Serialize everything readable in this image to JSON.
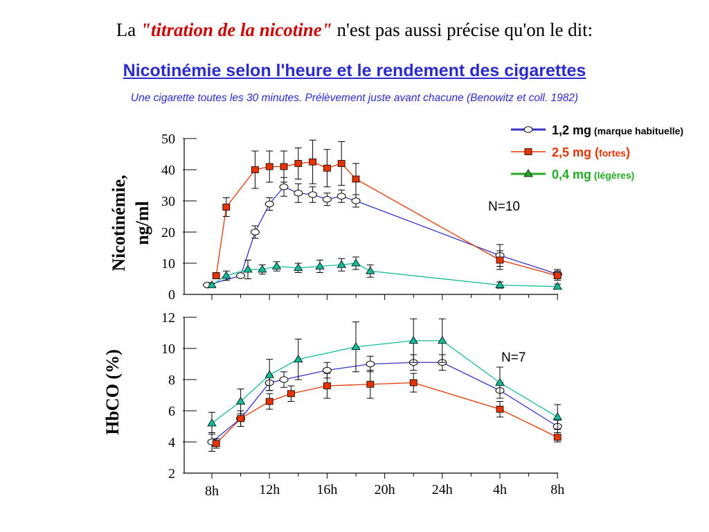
{
  "heading": {
    "prefix": "La ",
    "highlight": "\"titration de la nicotine\"",
    "suffix": " n'est pas aussi précise qu'on le dit:"
  },
  "title": "Nicotinémie selon l'heure et le rendement des cigarettes",
  "subtitle": "Une cigarette toutes les 30 minutes.  Prélèvement juste avant chacune (Benowitz et coll. 1982)",
  "colors": {
    "blue": "#3333cc",
    "red": "#e63300",
    "green": "#11bb99",
    "green_legend": "#22aa22",
    "title_blue": "#2a2ad0"
  },
  "legend": [
    {
      "main": "1,2 mg",
      "detail": " (marque habituelle)",
      "close": "",
      "marker": "circle",
      "color": "#3333cc",
      "text_color": "#000000"
    },
    {
      "main": "2,5 mg (",
      "detail": "fortes",
      "close": ")",
      "marker": "square",
      "color": "#e63300",
      "text_color": "#e63300"
    },
    {
      "main": "0,4 mg",
      "detail": " (légères)",
      "close": "",
      "marker": "triangle",
      "color": "#22aa22",
      "text_color": "#22aa22"
    }
  ],
  "chart_data": [
    {
      "type": "line",
      "ylabel": "Nicotinémie, ng/ml",
      "ylabel_lines": [
        "Nicotinémie,",
        "ng/ml"
      ],
      "ylim": [
        0,
        50
      ],
      "yticks": [
        0,
        10,
        20,
        30,
        40,
        50
      ],
      "annotation": "N=10",
      "series": [
        {
          "name": "1,2 mg (marque habituelle)",
          "marker": "circle",
          "color": "#3333cc",
          "x": [
            -0.3,
            2,
            3,
            4,
            5,
            6,
            7,
            8,
            9,
            10,
            20,
            24
          ],
          "y": [
            3,
            6,
            20,
            29,
            34.5,
            32.5,
            32,
            30.5,
            31.5,
            30,
            12.5,
            6.5
          ],
          "err": [
            0,
            0,
            2,
            2,
            3,
            3,
            2.5,
            2,
            2,
            2,
            3.5,
            1.5
          ]
        },
        {
          "name": "2,5 mg (fortes)",
          "marker": "square",
          "color": "#e63300",
          "x": [
            0.3,
            1,
            3,
            4,
            5,
            6,
            7,
            8,
            9,
            10,
            20,
            24
          ],
          "y": [
            6,
            28,
            40,
            41,
            41,
            42,
            42.5,
            40.5,
            42,
            37,
            11,
            6
          ],
          "err": [
            1,
            3,
            6,
            5,
            5,
            5,
            7,
            6,
            7,
            5,
            3,
            1.5
          ]
        },
        {
          "name": "0,4 mg (légères)",
          "marker": "triangle",
          "color": "#11bb99",
          "x": [
            0,
            1,
            2.5,
            3.5,
            4.5,
            6,
            7.5,
            9,
            10,
            11,
            20,
            24
          ],
          "y": [
            3,
            6,
            8,
            8,
            9,
            8.5,
            9,
            9.5,
            10,
            7.5,
            3,
            2.5
          ],
          "err": [
            0.5,
            1.5,
            3,
            1.5,
            1.5,
            1.5,
            2,
            2,
            2,
            2,
            1,
            0.8
          ]
        }
      ]
    },
    {
      "type": "line",
      "ylabel": "HbCO (%)",
      "ylim": [
        2,
        12
      ],
      "yticks": [
        2,
        4,
        6,
        8,
        10,
        12
      ],
      "annotation": "N=7",
      "xlabels": [
        "8h",
        "12h",
        "16h",
        "20h",
        "24h",
        "4h",
        "8h"
      ],
      "series": [
        {
          "name": "1,2 mg (marque habituelle)",
          "marker": "circle",
          "color": "#3333cc",
          "x": [
            0,
            2,
            4,
            5,
            8,
            11,
            14,
            16,
            20,
            24
          ],
          "y": [
            4,
            5.5,
            7.8,
            8,
            8.6,
            9,
            9.1,
            9.1,
            7.3,
            5
          ],
          "err": [
            0.6,
            0.5,
            0.5,
            0.5,
            0.5,
            0.5,
            0.5,
            0.5,
            0.5,
            0.4
          ]
        },
        {
          "name": "2,5 mg (fortes)",
          "marker": "square",
          "color": "#e63300",
          "x": [
            0.3,
            2,
            4,
            5.5,
            8,
            11,
            14,
            20,
            24
          ],
          "y": [
            3.9,
            5.5,
            6.6,
            7.1,
            7.6,
            7.7,
            7.8,
            6.1,
            4.3
          ],
          "err": [
            0.3,
            0.5,
            0.5,
            0.5,
            0.8,
            0.9,
            0.6,
            0.5,
            0.3
          ]
        },
        {
          "name": "0,4 mg (légères)",
          "marker": "triangle",
          "color": "#11bb99",
          "x": [
            0,
            2,
            4,
            6,
            10,
            14,
            16,
            20,
            24
          ],
          "y": [
            5.2,
            6.6,
            8.3,
            9.3,
            10.1,
            10.5,
            10.5,
            7.8,
            5.6
          ],
          "err": [
            0.7,
            0.8,
            1,
            1.3,
            1.6,
            1.4,
            1.4,
            1,
            0.8
          ]
        }
      ]
    }
  ]
}
